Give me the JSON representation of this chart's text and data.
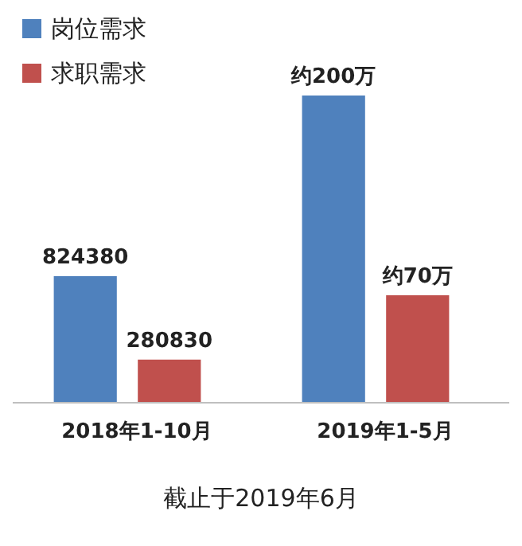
{
  "chart_data": {
    "type": "bar",
    "categories": [
      "2018年1-10月",
      "2019年1-5月"
    ],
    "series": [
      {
        "name": "岗位需求",
        "color": "#4f81bd",
        "values": [
          824380,
          2000000
        ],
        "value_labels": [
          "824380",
          "约200万"
        ]
      },
      {
        "name": "求职需求",
        "color": "#c0504d",
        "values": [
          280830,
          700000
        ],
        "value_labels": [
          "280830",
          "约70万"
        ]
      }
    ],
    "legend": "top left",
    "annotations": [
      "截止于2019年6月"
    ]
  }
}
